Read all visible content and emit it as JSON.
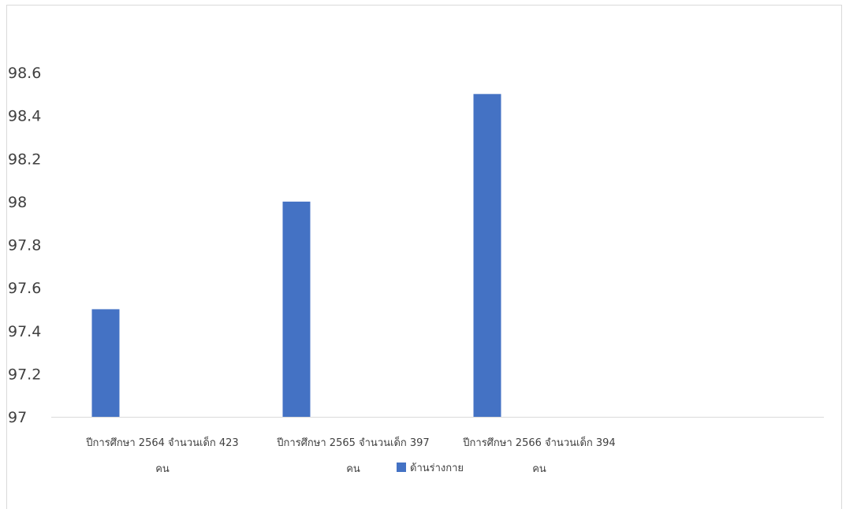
{
  "chart_data": {
    "type": "bar",
    "title": "",
    "xlabel": "",
    "ylabel": "",
    "categories": [
      [
        "ปีการศึกษา 2564 จำนวนเด็ก 423",
        "คน"
      ],
      [
        "ปีการศึกษา 2565 จำนวนเด็ก 397",
        "คน"
      ],
      [
        "ปีการศึกษา 2566 จำนวนเด็ก 394",
        "คน"
      ]
    ],
    "series": [
      {
        "name": "ด้านร่างกาย",
        "values": [
          97.5,
          98.0,
          98.5
        ],
        "color": "#4472C4"
      }
    ],
    "ylim": [
      97,
      98.6
    ],
    "yticks": [
      "97",
      "97.2",
      "97.4",
      "97.6",
      "97.8",
      "98",
      "98.2",
      "98.4",
      "98.6"
    ],
    "grid": false,
    "legend": "bottom"
  }
}
